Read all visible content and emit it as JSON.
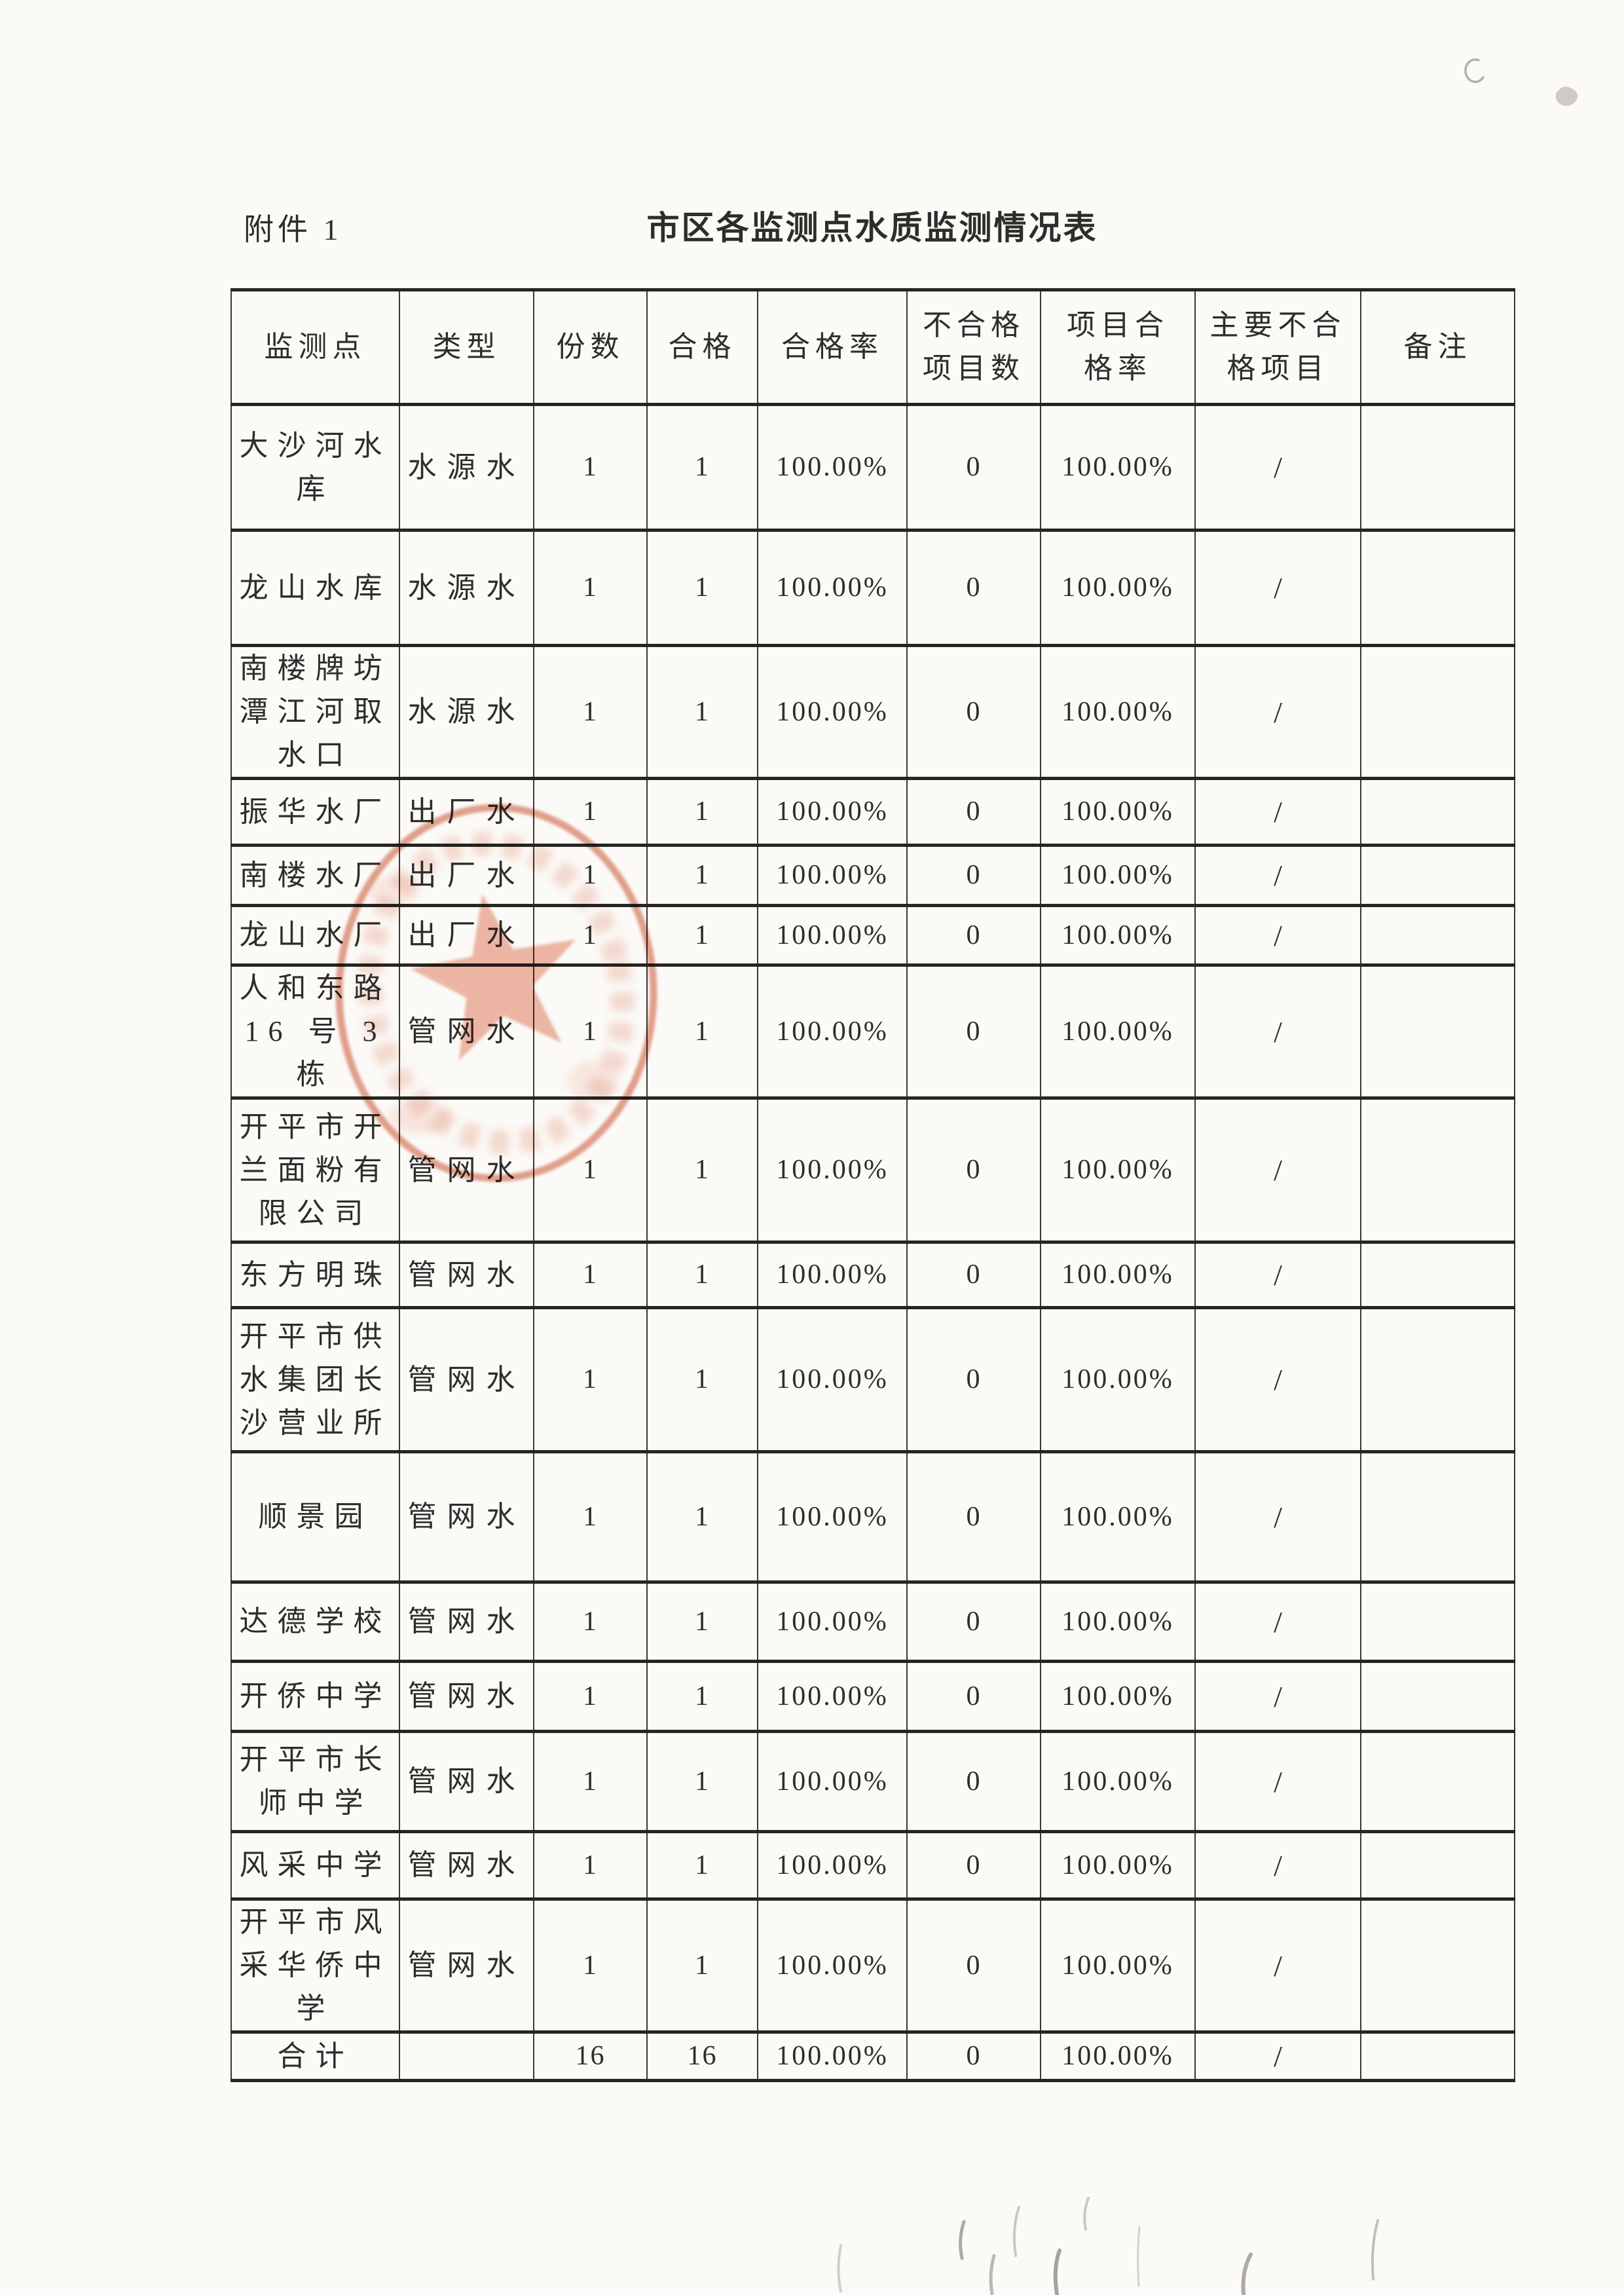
{
  "page": {
    "attachment_label": "附件 1",
    "title": "市区各监测点水质监测情况表"
  },
  "colors": {
    "paper": "#fbfaf7",
    "ink": "#2e2d2b",
    "grid": "#3a3836",
    "grid-heavy": "#262524",
    "stamp": "#dd8770",
    "stamp-light": "#e99d86"
  },
  "table": {
    "headers": [
      {
        "key": "site",
        "label": "监测点"
      },
      {
        "key": "type",
        "label": "类型"
      },
      {
        "key": "samples",
        "label": "份数"
      },
      {
        "key": "qualified",
        "label": "合格"
      },
      {
        "key": "pass_rate",
        "label": "合格率"
      },
      {
        "key": "failed_item_count",
        "label": "不合格\n项目数"
      },
      {
        "key": "item_pass_rate",
        "label": "项目合\n格率"
      },
      {
        "key": "main_failed_items",
        "label": "主要不合\n格项目"
      },
      {
        "key": "remark",
        "label": "备注"
      }
    ],
    "rows": [
      {
        "site": "大沙河水\n库",
        "type": "水源水",
        "samples": "1",
        "qualified": "1",
        "pass_rate": "100.00%",
        "failed_item_count": "0",
        "item_pass_rate": "100.00%",
        "main_failed_items": "/",
        "remark": ""
      },
      {
        "site": "龙山水库",
        "type": "水源水",
        "samples": "1",
        "qualified": "1",
        "pass_rate": "100.00%",
        "failed_item_count": "0",
        "item_pass_rate": "100.00%",
        "main_failed_items": "/",
        "remark": ""
      },
      {
        "site": "南楼牌坊\n潭江河取\n水口",
        "type": "水源水",
        "samples": "1",
        "qualified": "1",
        "pass_rate": "100.00%",
        "failed_item_count": "0",
        "item_pass_rate": "100.00%",
        "main_failed_items": "/",
        "remark": ""
      },
      {
        "site": "振华水厂",
        "type": "出厂水",
        "samples": "1",
        "qualified": "1",
        "pass_rate": "100.00%",
        "failed_item_count": "0",
        "item_pass_rate": "100.00%",
        "main_failed_items": "/",
        "remark": ""
      },
      {
        "site": "南楼水厂",
        "type": "出厂水",
        "samples": "1",
        "qualified": "1",
        "pass_rate": "100.00%",
        "failed_item_count": "0",
        "item_pass_rate": "100.00%",
        "main_failed_items": "/",
        "remark": ""
      },
      {
        "site": "龙山水厂",
        "type": "出厂水",
        "samples": "1",
        "qualified": "1",
        "pass_rate": "100.00%",
        "failed_item_count": "0",
        "item_pass_rate": "100.00%",
        "main_failed_items": "/",
        "remark": ""
      },
      {
        "site": "人和东路\n16 号 3 栋",
        "type": "管网水",
        "samples": "1",
        "qualified": "1",
        "pass_rate": "100.00%",
        "failed_item_count": "0",
        "item_pass_rate": "100.00%",
        "main_failed_items": "/",
        "remark": ""
      },
      {
        "site": "开平市开\n兰面粉有\n限公司",
        "type": "管网水",
        "samples": "1",
        "qualified": "1",
        "pass_rate": "100.00%",
        "failed_item_count": "0",
        "item_pass_rate": "100.00%",
        "main_failed_items": "/",
        "remark": ""
      },
      {
        "site": "东方明珠",
        "type": "管网水",
        "samples": "1",
        "qualified": "1",
        "pass_rate": "100.00%",
        "failed_item_count": "0",
        "item_pass_rate": "100.00%",
        "main_failed_items": "/",
        "remark": ""
      },
      {
        "site": "开平市供\n水集团长\n沙营业所",
        "type": "管网水",
        "samples": "1",
        "qualified": "1",
        "pass_rate": "100.00%",
        "failed_item_count": "0",
        "item_pass_rate": "100.00%",
        "main_failed_items": "/",
        "remark": ""
      },
      {
        "site": "顺景园",
        "type": "管网水",
        "samples": "1",
        "qualified": "1",
        "pass_rate": "100.00%",
        "failed_item_count": "0",
        "item_pass_rate": "100.00%",
        "main_failed_items": "/",
        "remark": ""
      },
      {
        "site": "达德学校",
        "type": "管网水",
        "samples": "1",
        "qualified": "1",
        "pass_rate": "100.00%",
        "failed_item_count": "0",
        "item_pass_rate": "100.00%",
        "main_failed_items": "/",
        "remark": ""
      },
      {
        "site": "开侨中学",
        "type": "管网水",
        "samples": "1",
        "qualified": "1",
        "pass_rate": "100.00%",
        "failed_item_count": "0",
        "item_pass_rate": "100.00%",
        "main_failed_items": "/",
        "remark": ""
      },
      {
        "site": "开平市长\n师中学",
        "type": "管网水",
        "samples": "1",
        "qualified": "1",
        "pass_rate": "100.00%",
        "failed_item_count": "0",
        "item_pass_rate": "100.00%",
        "main_failed_items": "/",
        "remark": ""
      },
      {
        "site": "风采中学",
        "type": "管网水",
        "samples": "1",
        "qualified": "1",
        "pass_rate": "100.00%",
        "failed_item_count": "0",
        "item_pass_rate": "100.00%",
        "main_failed_items": "/",
        "remark": ""
      },
      {
        "site": "开平市风\n采华侨中\n学",
        "type": "管网水",
        "samples": "1",
        "qualified": "1",
        "pass_rate": "100.00%",
        "failed_item_count": "0",
        "item_pass_rate": "100.00%",
        "main_failed_items": "/",
        "remark": ""
      },
      {
        "site": "合计",
        "type": "",
        "samples": "16",
        "qualified": "16",
        "pass_rate": "100.00%",
        "failed_item_count": "0",
        "item_pass_rate": "100.00%",
        "main_failed_items": "/",
        "remark": ""
      }
    ]
  }
}
